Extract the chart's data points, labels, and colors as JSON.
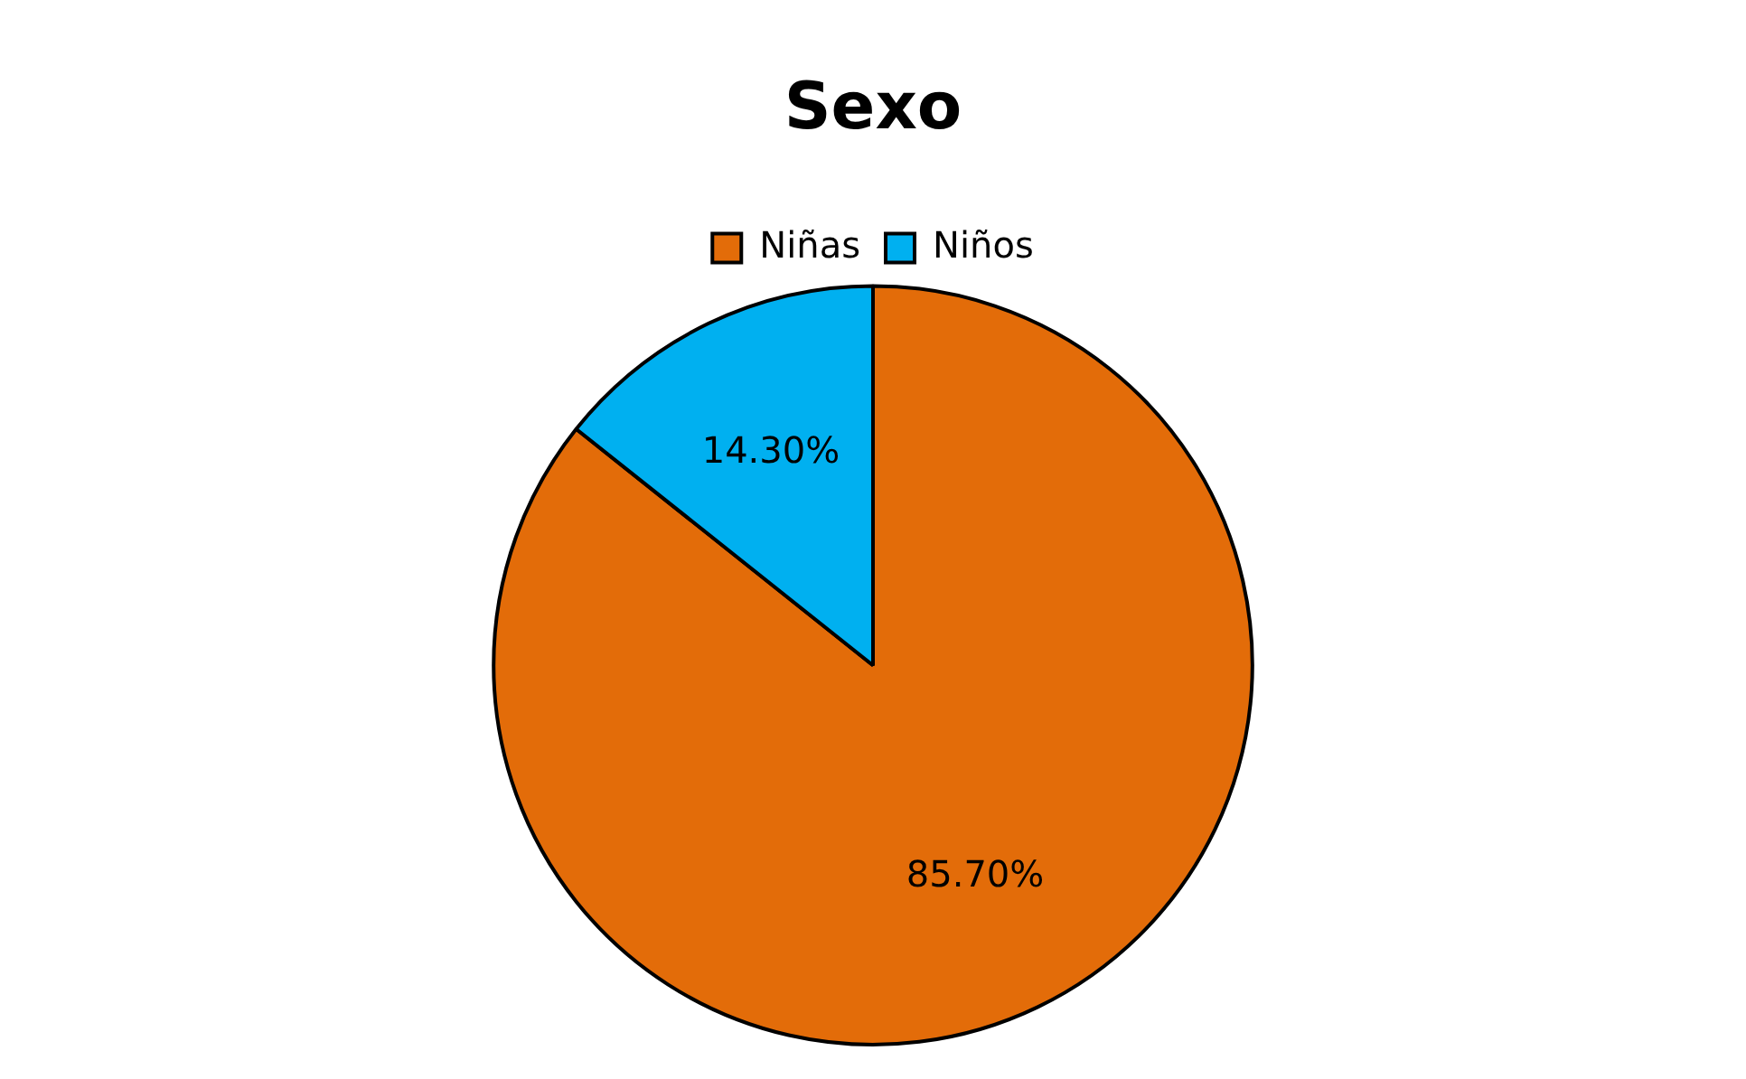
{
  "chart_data": {
    "type": "pie",
    "title": "Sexo",
    "categories": [
      "Niñas",
      "Niños"
    ],
    "values": [
      85.7,
      14.3
    ],
    "colors": [
      "#e36c09",
      "#00b0f0"
    ],
    "value_labels": [
      "85.70%",
      "14.30%"
    ],
    "legend": "top"
  }
}
